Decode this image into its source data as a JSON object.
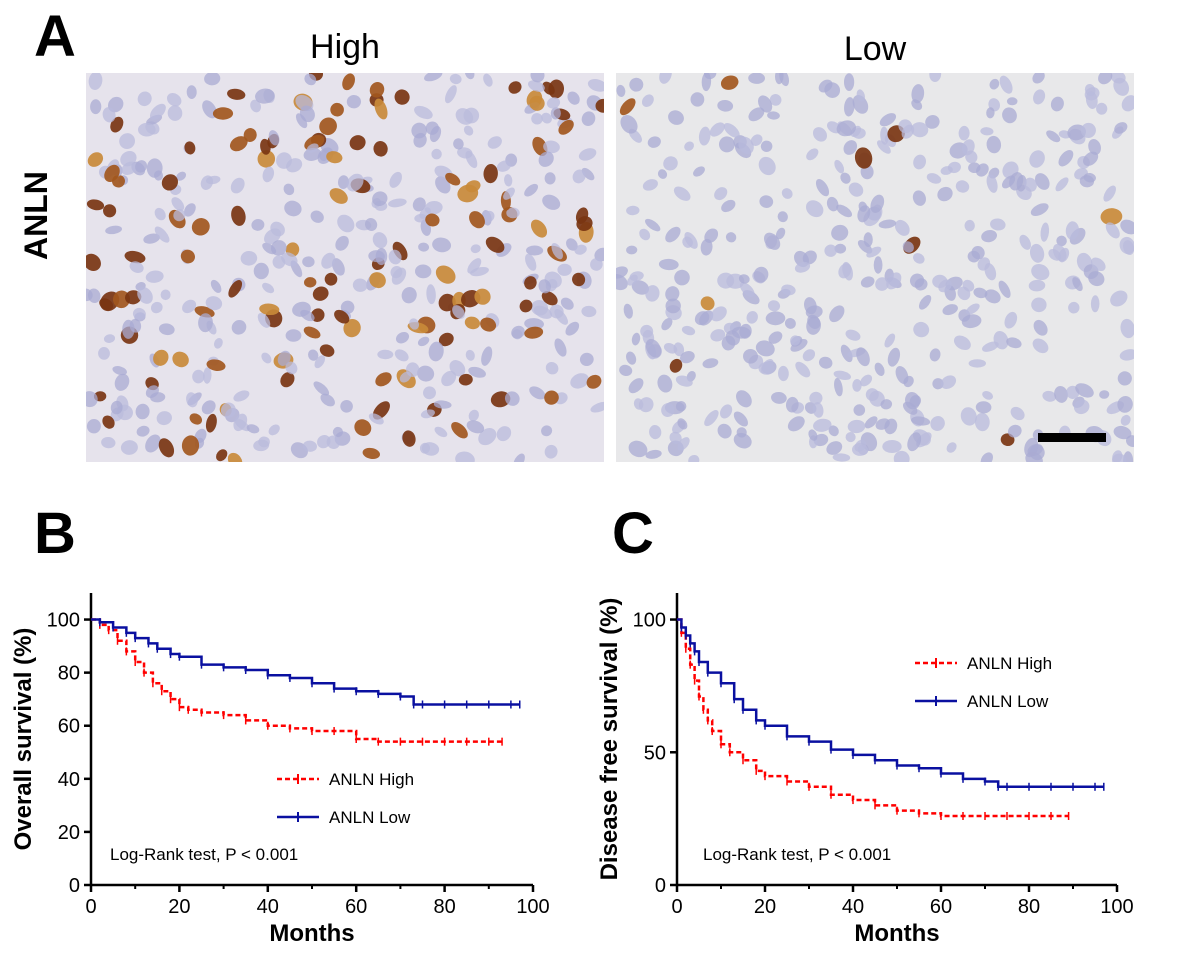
{
  "panels": {
    "a": {
      "letter": "A",
      "row_label": "ANLN",
      "images": [
        {
          "label": "High"
        },
        {
          "label": "Low"
        }
      ],
      "scale_bar": true
    },
    "b": {
      "letter": "B"
    },
    "c": {
      "letter": "C"
    }
  },
  "colors": {
    "high": "#ff0000",
    "low": "#0a10a0",
    "stain_brown": "#7a3512",
    "nucleus_blue": "#9a9fcf"
  },
  "chart_data": [
    {
      "type": "line",
      "chart_kind": "kaplan-meier",
      "panel": "B",
      "xlabel": "Months",
      "ylabel": "Overall survival (%)",
      "xlim": [
        0,
        100
      ],
      "ylim": [
        0,
        110
      ],
      "xticks": [
        0,
        20,
        40,
        60,
        80,
        100
      ],
      "yticks": [
        0,
        20,
        40,
        60,
        80,
        100
      ],
      "annotation": "Log-Rank test, P < 0.001",
      "legend_position": "center-right",
      "series": [
        {
          "name": "ANLN High",
          "color": "#ff0000",
          "style": "dashed",
          "x": [
            0,
            2,
            4,
            6,
            8,
            10,
            12,
            14,
            16,
            18,
            20,
            22,
            25,
            30,
            35,
            40,
            45,
            50,
            55,
            60,
            65,
            70,
            75,
            80,
            85,
            90,
            93
          ],
          "y": [
            100,
            98,
            96,
            92,
            88,
            84,
            80,
            76,
            73,
            70,
            67,
            66,
            65,
            64,
            62,
            60,
            59,
            58,
            58,
            55,
            54,
            54,
            54,
            54,
            54,
            54,
            54
          ]
        },
        {
          "name": "ANLN Low",
          "color": "#0a10a0",
          "style": "solid",
          "x": [
            0,
            2,
            5,
            8,
            10,
            13,
            15,
            18,
            20,
            25,
            30,
            35,
            40,
            45,
            50,
            55,
            60,
            65,
            70,
            73,
            75,
            80,
            85,
            90,
            95,
            97
          ],
          "y": [
            100,
            99,
            97,
            95,
            93,
            91,
            89,
            87,
            86,
            83,
            82,
            81,
            79,
            78,
            76,
            74,
            73,
            72,
            71,
            68,
            68,
            68,
            68,
            68,
            68,
            68
          ]
        }
      ]
    },
    {
      "type": "line",
      "chart_kind": "kaplan-meier",
      "panel": "C",
      "xlabel": "Months",
      "ylabel": "Disease free survival (%)",
      "xlim": [
        0,
        100
      ],
      "ylim": [
        0,
        110
      ],
      "xticks": [
        0,
        20,
        40,
        60,
        80,
        100
      ],
      "yticks": [
        0,
        50,
        100
      ],
      "annotation": "Log-Rank test, P < 0.001",
      "legend_position": "top-right",
      "series": [
        {
          "name": "ANLN High",
          "color": "#ff0000",
          "style": "dashed",
          "x": [
            0,
            1,
            2,
            3,
            4,
            5,
            6,
            7,
            8,
            10,
            12,
            15,
            18,
            20,
            25,
            30,
            35,
            40,
            45,
            50,
            55,
            60,
            65,
            70,
            75,
            80,
            85,
            89
          ],
          "y": [
            100,
            95,
            89,
            83,
            77,
            71,
            66,
            62,
            58,
            53,
            50,
            47,
            43,
            41,
            39,
            37,
            34,
            32,
            30,
            28,
            27,
            26,
            26,
            26,
            26,
            26,
            26,
            26
          ]
        },
        {
          "name": "ANLN Low",
          "color": "#0a10a0",
          "style": "solid",
          "x": [
            0,
            1,
            2,
            3,
            4,
            5,
            7,
            10,
            13,
            15,
            18,
            20,
            25,
            30,
            35,
            40,
            45,
            50,
            55,
            60,
            65,
            70,
            73,
            75,
            80,
            85,
            90,
            95,
            97
          ],
          "y": [
            100,
            97,
            94,
            91,
            88,
            84,
            80,
            76,
            70,
            66,
            62,
            60,
            56,
            54,
            51,
            49,
            47,
            45,
            44,
            42,
            40,
            39,
            37,
            37,
            37,
            37,
            37,
            37,
            37
          ]
        }
      ]
    }
  ]
}
